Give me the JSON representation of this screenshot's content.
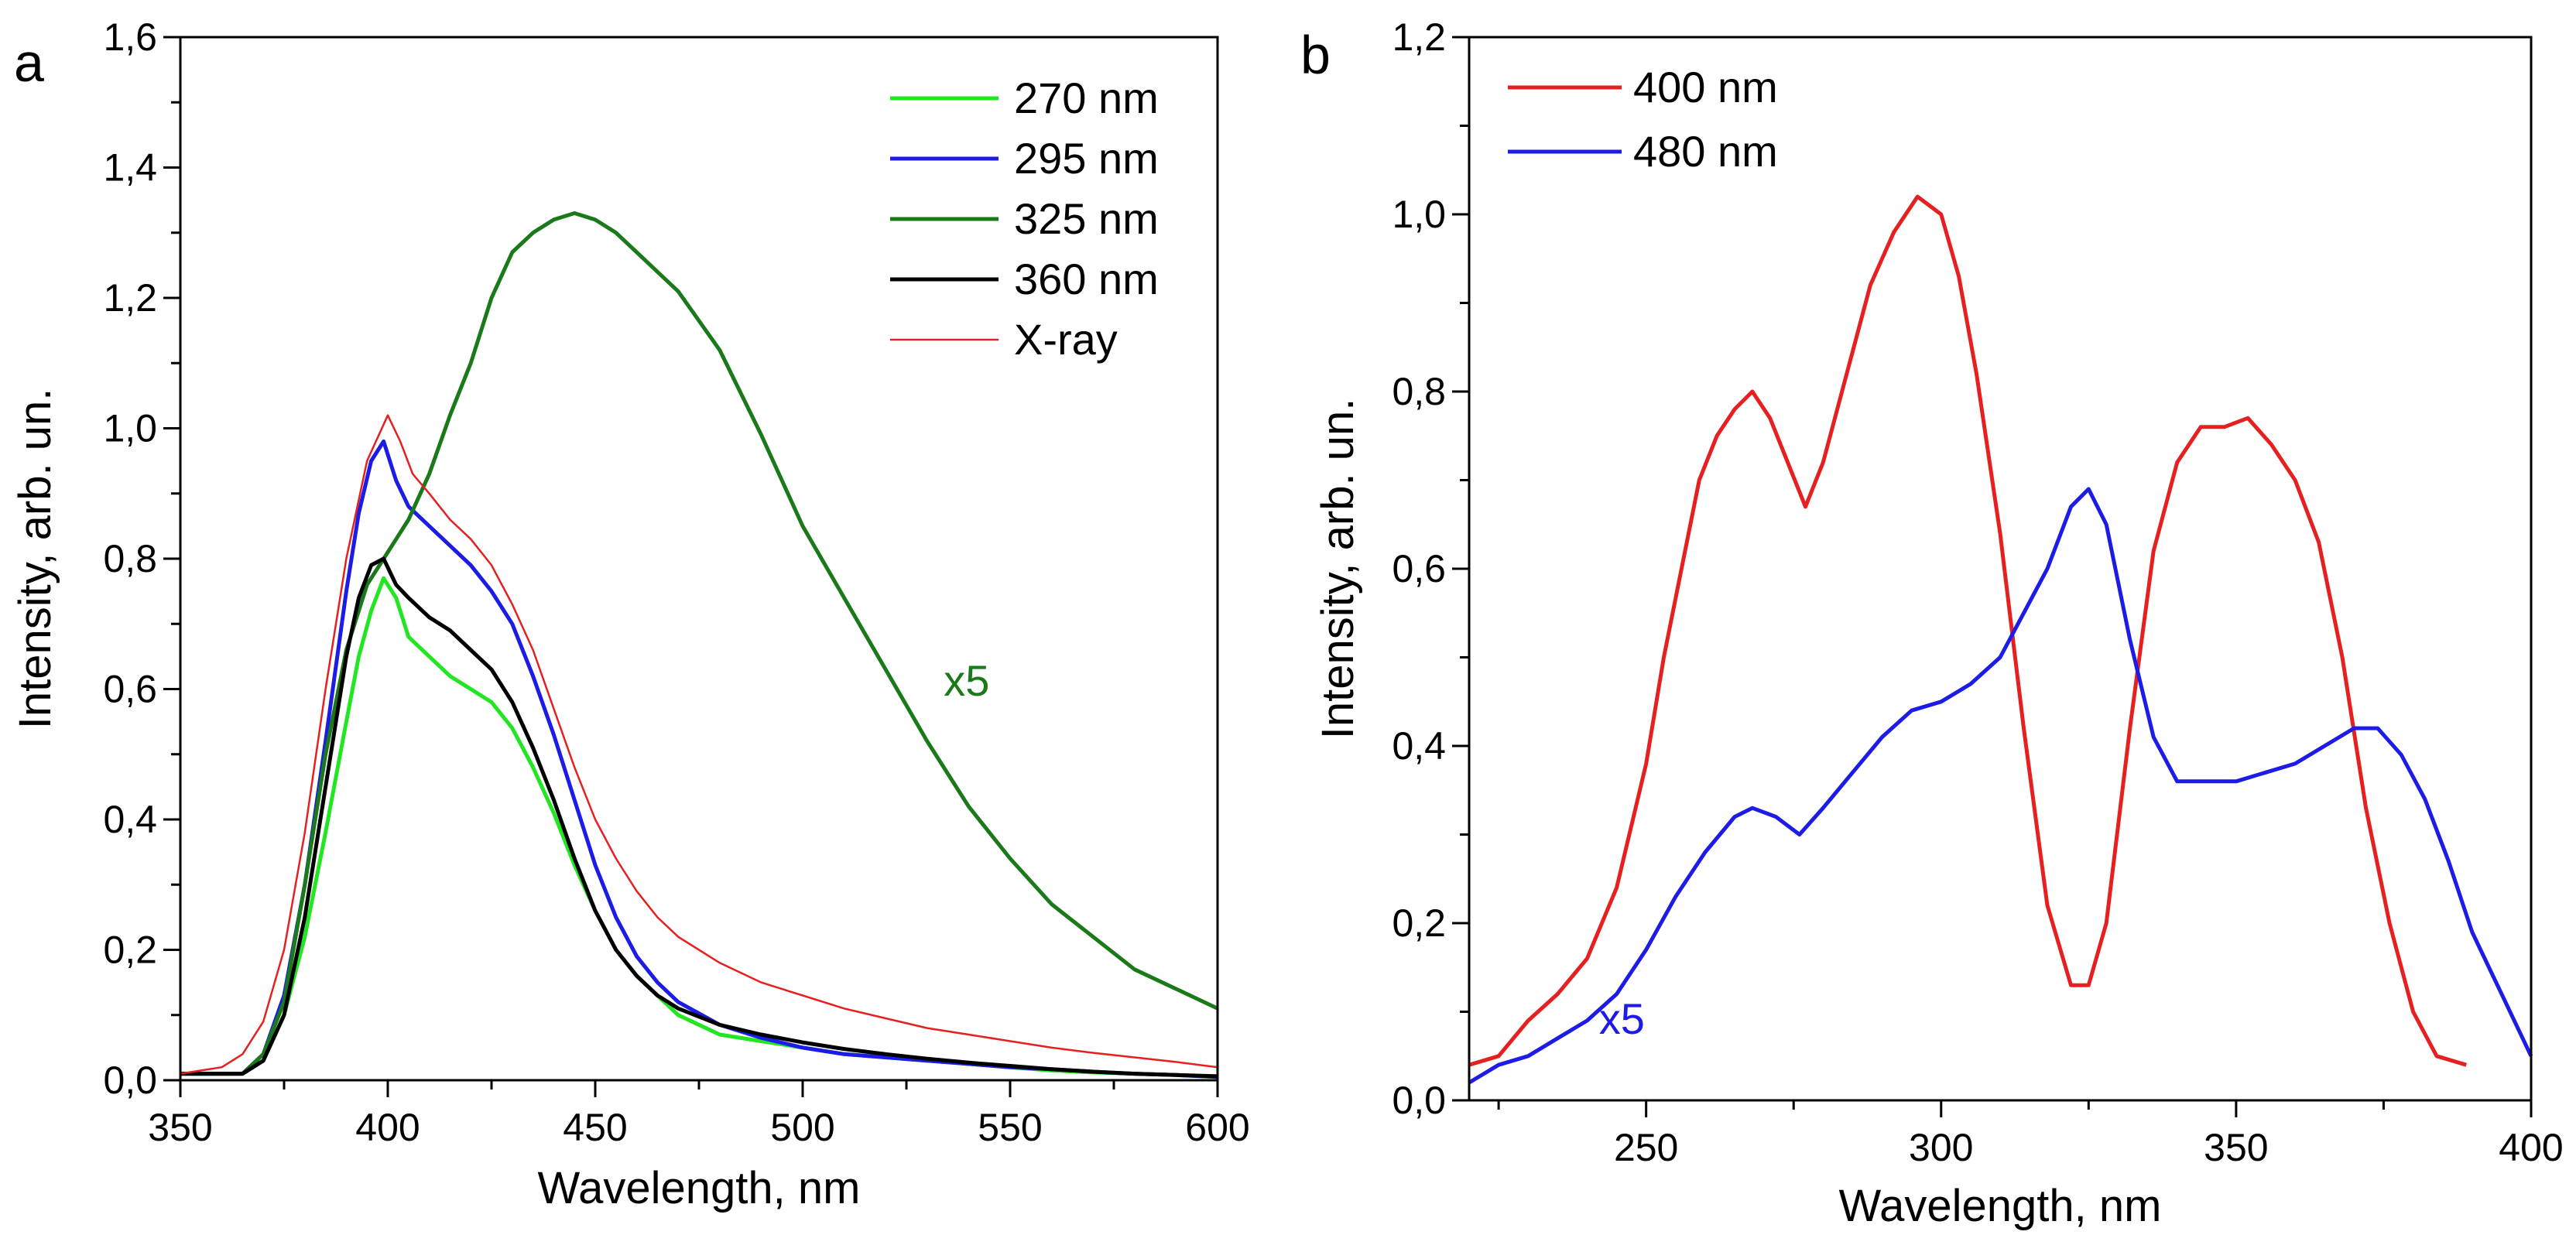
{
  "chart_data": [
    {
      "panel": "a",
      "type": "line",
      "xlabel": "Wavelength, nm",
      "ylabel": "Intensity, arb. un.",
      "xlim": [
        350,
        600
      ],
      "ylim": [
        0.0,
        1.6
      ],
      "xticks": [
        "350",
        "400",
        "450",
        "500",
        "550",
        "600"
      ],
      "xtick_values": [
        350,
        400,
        450,
        500,
        550,
        600
      ],
      "yticks": [
        "0,0",
        "0,2",
        "0,4",
        "0,6",
        "0,8",
        "1,0",
        "1,2",
        "1,4",
        "1,6"
      ],
      "ytick_values": [
        0,
        0.2,
        0.4,
        0.6,
        0.8,
        1.0,
        1.2,
        1.4,
        1.6
      ],
      "legend_position": "top-right",
      "annotation": {
        "text": "x5",
        "x": 534,
        "y": 0.59,
        "color": "#1a7a1a"
      },
      "series": [
        {
          "name": "270 nm",
          "color": "#22e622",
          "width": 5,
          "x": [
            350,
            365,
            370,
            375,
            380,
            385,
            390,
            393,
            396,
            399,
            402,
            405,
            410,
            415,
            420,
            425,
            430,
            435,
            440,
            445,
            450,
            455,
            460,
            465,
            470,
            480,
            490,
            500,
            510,
            520,
            530,
            540,
            550,
            560,
            570,
            580,
            590,
            600
          ],
          "y": [
            0.01,
            0.01,
            0.03,
            0.1,
            0.22,
            0.38,
            0.55,
            0.65,
            0.72,
            0.77,
            0.74,
            0.68,
            0.65,
            0.62,
            0.6,
            0.58,
            0.54,
            0.48,
            0.41,
            0.33,
            0.26,
            0.2,
            0.16,
            0.13,
            0.1,
            0.07,
            0.06,
            0.05,
            0.04,
            0.035,
            0.03,
            0.025,
            0.02,
            0.015,
            0.012,
            0.01,
            0.008,
            0.005
          ]
        },
        {
          "name": "295 nm",
          "color": "#1c1ce6",
          "width": 5,
          "x": [
            350,
            365,
            370,
            375,
            380,
            385,
            390,
            393,
            396,
            399,
            402,
            405,
            410,
            415,
            420,
            425,
            430,
            435,
            440,
            445,
            450,
            455,
            460,
            465,
            470,
            480,
            490,
            500,
            510,
            520,
            530,
            540,
            550,
            560,
            570,
            580,
            590,
            600
          ],
          "y": [
            0.01,
            0.01,
            0.04,
            0.13,
            0.3,
            0.52,
            0.75,
            0.87,
            0.95,
            0.98,
            0.92,
            0.88,
            0.85,
            0.82,
            0.79,
            0.75,
            0.7,
            0.62,
            0.53,
            0.43,
            0.33,
            0.25,
            0.19,
            0.15,
            0.12,
            0.085,
            0.065,
            0.05,
            0.04,
            0.035,
            0.03,
            0.025,
            0.02,
            0.017,
            0.013,
            0.01,
            0.008,
            0.005
          ]
        },
        {
          "name": "325 nm",
          "color": "#1a7a1a",
          "width": 5,
          "x": [
            350,
            365,
            370,
            375,
            380,
            385,
            390,
            395,
            400,
            405,
            410,
            415,
            420,
            425,
            430,
            435,
            440,
            445,
            450,
            455,
            460,
            465,
            470,
            480,
            490,
            500,
            510,
            520,
            530,
            540,
            550,
            560,
            570,
            580,
            590,
            600
          ],
          "y": [
            0.01,
            0.01,
            0.04,
            0.12,
            0.3,
            0.5,
            0.66,
            0.76,
            0.81,
            0.86,
            0.93,
            1.02,
            1.1,
            1.2,
            1.27,
            1.3,
            1.32,
            1.33,
            1.32,
            1.3,
            1.27,
            1.24,
            1.21,
            1.12,
            0.99,
            0.85,
            0.74,
            0.63,
            0.52,
            0.42,
            0.34,
            0.27,
            0.22,
            0.17,
            0.14,
            0.11
          ]
        },
        {
          "name": "360 nm",
          "color": "#000000",
          "width": 5,
          "x": [
            350,
            365,
            370,
            375,
            380,
            385,
            390,
            393,
            396,
            399,
            402,
            405,
            410,
            415,
            420,
            425,
            430,
            435,
            440,
            445,
            450,
            455,
            460,
            465,
            470,
            480,
            490,
            500,
            510,
            520,
            530,
            540,
            550,
            560,
            570,
            580,
            590,
            600
          ],
          "y": [
            0.01,
            0.01,
            0.03,
            0.1,
            0.25,
            0.45,
            0.65,
            0.74,
            0.79,
            0.8,
            0.76,
            0.74,
            0.71,
            0.69,
            0.66,
            0.63,
            0.58,
            0.51,
            0.43,
            0.34,
            0.26,
            0.2,
            0.16,
            0.13,
            0.11,
            0.085,
            0.07,
            0.058,
            0.048,
            0.04,
            0.033,
            0.027,
            0.022,
            0.017,
            0.013,
            0.01,
            0.008,
            0.006
          ]
        },
        {
          "name": "X-ray",
          "color": "#e62020",
          "width": 2.5,
          "x": [
            350,
            360,
            365,
            370,
            375,
            380,
            385,
            390,
            395,
            400,
            403,
            406,
            410,
            415,
            420,
            425,
            430,
            435,
            440,
            445,
            450,
            455,
            460,
            465,
            470,
            480,
            490,
            500,
            510,
            520,
            530,
            540,
            550,
            560,
            570,
            580,
            590,
            600
          ],
          "y": [
            0.01,
            0.02,
            0.04,
            0.09,
            0.2,
            0.38,
            0.6,
            0.8,
            0.95,
            1.02,
            0.98,
            0.93,
            0.9,
            0.86,
            0.83,
            0.79,
            0.73,
            0.66,
            0.57,
            0.48,
            0.4,
            0.34,
            0.29,
            0.25,
            0.22,
            0.18,
            0.15,
            0.13,
            0.11,
            0.095,
            0.08,
            0.07,
            0.06,
            0.05,
            0.042,
            0.035,
            0.028,
            0.02
          ]
        }
      ]
    },
    {
      "panel": "b",
      "type": "line",
      "xlabel": "Wavelength, nm",
      "ylabel": "Intensity, arb. un.",
      "xlim": [
        220,
        400
      ],
      "ylim": [
        0.0,
        1.2
      ],
      "xticks": [
        "250",
        "300",
        "350",
        "400"
      ],
      "xtick_values": [
        250,
        300,
        350,
        400
      ],
      "yticks": [
        "0,0",
        "0,2",
        "0,4",
        "0,6",
        "0,8",
        "1,0",
        "1,2"
      ],
      "ytick_values": [
        0,
        0.2,
        0.4,
        0.6,
        0.8,
        1.0,
        1.2
      ],
      "legend_position": "top-left",
      "annotation": {
        "text": "x5",
        "x": 242,
        "y": 0.075,
        "color": "#1c1ce6"
      },
      "series": [
        {
          "name": "400 nm",
          "color": "#e62020",
          "width": 5,
          "x": [
            220,
            225,
            230,
            235,
            240,
            245,
            250,
            253,
            256,
            259,
            262,
            265,
            268,
            271,
            274,
            277,
            280,
            284,
            288,
            292,
            296,
            300,
            303,
            306,
            310,
            314,
            318,
            322,
            325,
            328,
            332,
            336,
            340,
            344,
            348,
            352,
            356,
            360,
            364,
            368,
            372,
            376,
            380,
            384,
            389
          ],
          "y": [
            0.04,
            0.05,
            0.09,
            0.12,
            0.16,
            0.24,
            0.38,
            0.5,
            0.6,
            0.7,
            0.75,
            0.78,
            0.8,
            0.77,
            0.72,
            0.67,
            0.72,
            0.82,
            0.92,
            0.98,
            1.02,
            1.0,
            0.93,
            0.82,
            0.64,
            0.42,
            0.22,
            0.13,
            0.13,
            0.2,
            0.42,
            0.62,
            0.72,
            0.76,
            0.76,
            0.77,
            0.74,
            0.7,
            0.63,
            0.5,
            0.33,
            0.2,
            0.1,
            0.05,
            0.04
          ]
        },
        {
          "name": "480 nm",
          "color": "#1c1ce6",
          "width": 5,
          "x": [
            220,
            225,
            230,
            235,
            240,
            245,
            250,
            255,
            260,
            265,
            268,
            272,
            276,
            280,
            285,
            290,
            295,
            300,
            305,
            310,
            314,
            318,
            322,
            325,
            328,
            332,
            336,
            340,
            345,
            350,
            355,
            360,
            365,
            370,
            374,
            378,
            382,
            386,
            390,
            395,
            400
          ],
          "y": [
            0.02,
            0.04,
            0.05,
            0.07,
            0.09,
            0.12,
            0.17,
            0.23,
            0.28,
            0.32,
            0.33,
            0.32,
            0.3,
            0.33,
            0.37,
            0.41,
            0.44,
            0.45,
            0.47,
            0.5,
            0.55,
            0.6,
            0.67,
            0.69,
            0.65,
            0.52,
            0.41,
            0.36,
            0.36,
            0.36,
            0.37,
            0.38,
            0.4,
            0.42,
            0.42,
            0.39,
            0.34,
            0.27,
            0.19,
            0.12,
            0.05
          ]
        }
      ]
    }
  ],
  "panels": {
    "a": {
      "letter": "a"
    },
    "b": {
      "letter": "b"
    }
  }
}
